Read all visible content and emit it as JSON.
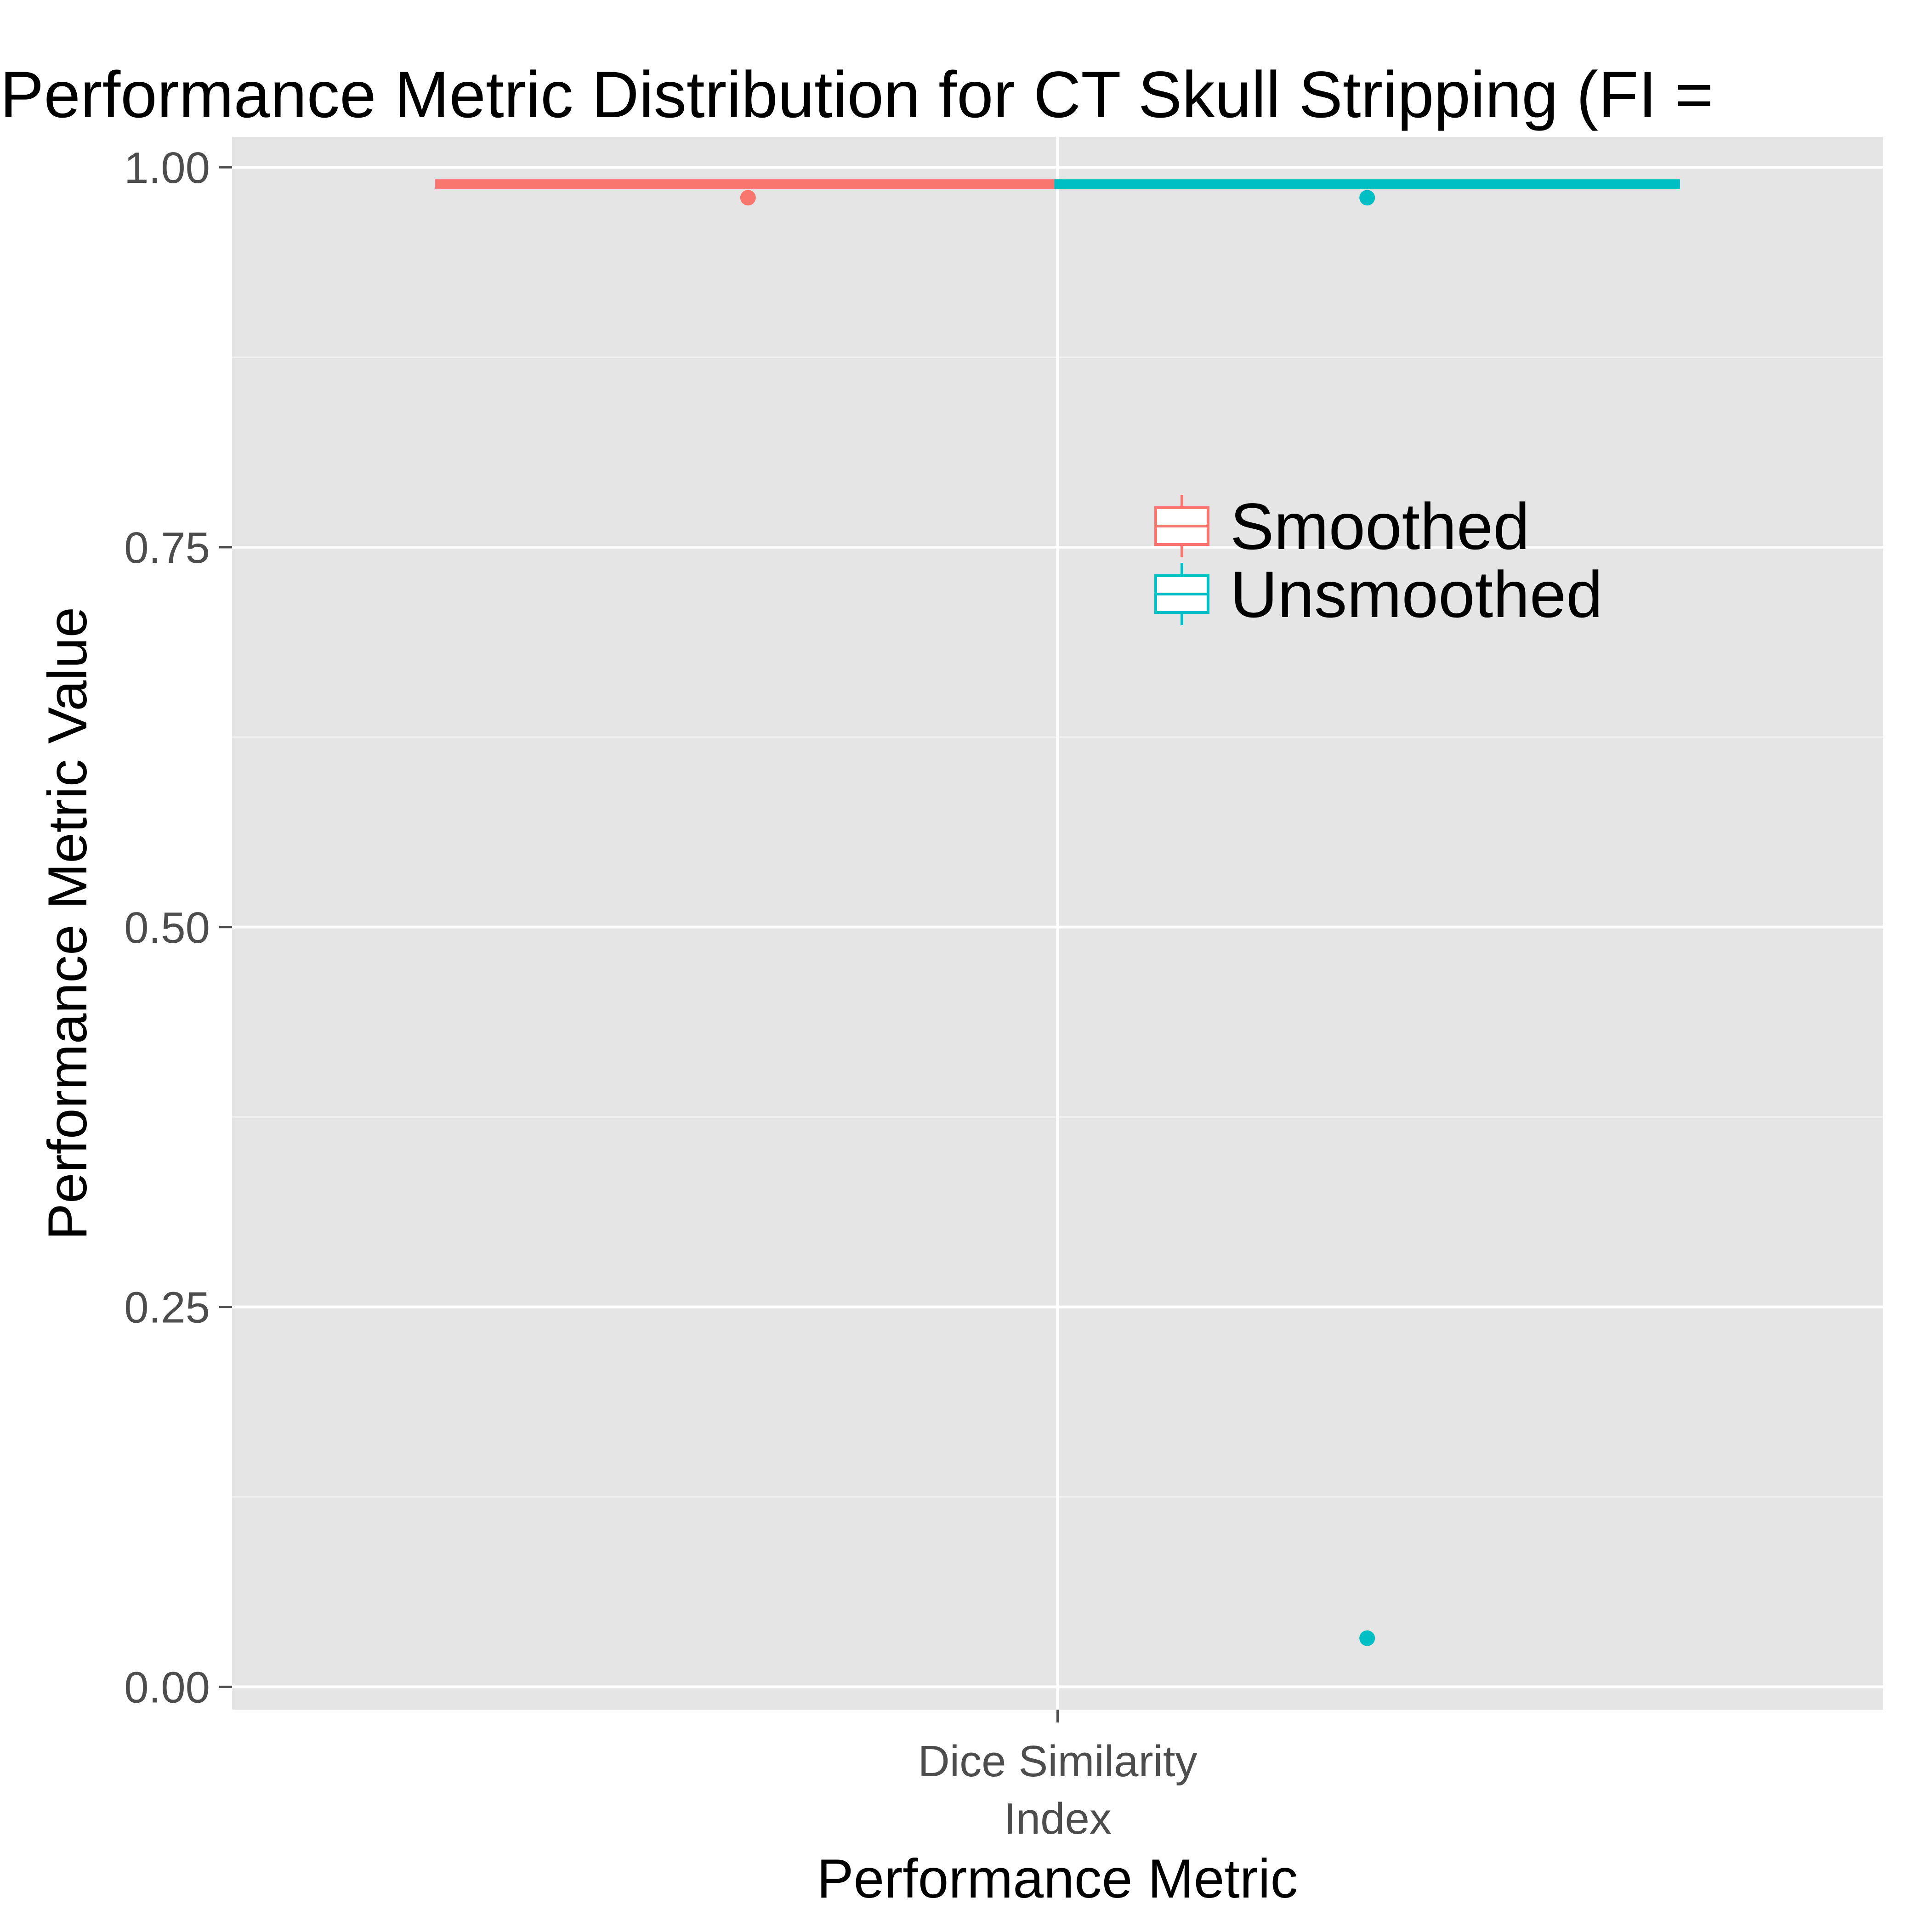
{
  "chart_data": {
    "type": "boxplot",
    "title": "Performance Metric Distribution for CT Skull Stripping (FI =",
    "xlabel": "Performance Metric",
    "ylabel": "Performance Metric Value",
    "categories": [
      "Dice Similarity\nIndex"
    ],
    "category_lines": [
      "Dice Similarity",
      "Index"
    ],
    "ylim": [
      -0.015,
      1.02
    ],
    "yticks": [
      0.0,
      0.25,
      0.5,
      0.75,
      1.0
    ],
    "ytick_labels": [
      "0.00",
      "0.25",
      "0.50",
      "0.75",
      "1.00"
    ],
    "y_minor": [
      0.125,
      0.375,
      0.625,
      0.875
    ],
    "grid": true,
    "legend_position": "inside-right",
    "series": [
      {
        "name": "Smoothed",
        "color": "#F8766D",
        "box": {
          "lower": 0.988,
          "q1": 0.988,
          "median": 0.989,
          "q3": 0.99,
          "upper": 0.991
        },
        "outliers": [
          0.98
        ]
      },
      {
        "name": "Unsmoothed",
        "color": "#00BFC4",
        "box": {
          "lower": 0.988,
          "q1": 0.988,
          "median": 0.989,
          "q3": 0.99,
          "upper": 0.991
        },
        "outliers": [
          0.98,
          0.032
        ]
      }
    ]
  }
}
